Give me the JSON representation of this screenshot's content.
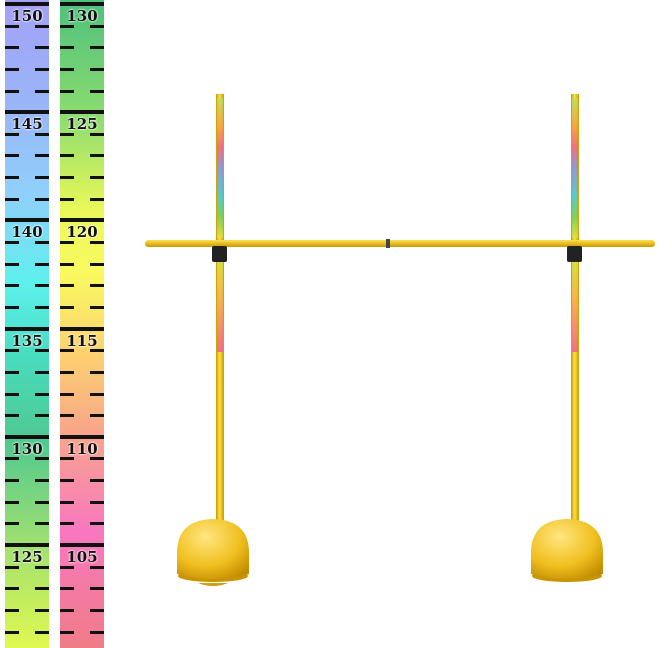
{
  "rulers": [
    {
      "labels": [
        "150",
        "145",
        "140",
        "135",
        "130",
        "125"
      ]
    },
    {
      "labels": [
        "130",
        "125",
        "120",
        "115",
        "110",
        "105"
      ]
    }
  ],
  "colors": {
    "pole": "#f2c418",
    "base": "#f0c020",
    "clamp": "#222222"
  }
}
